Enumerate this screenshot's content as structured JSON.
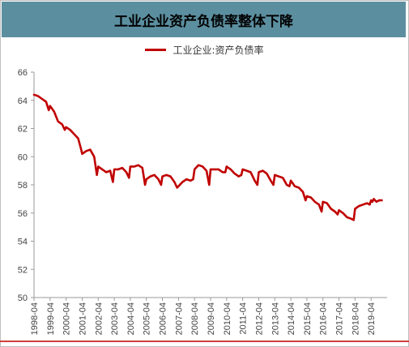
{
  "title": "工业企业资产负债率整体下降",
  "colors": {
    "title_bg": "#5b8fa0",
    "series": "#c00000",
    "axis": "#999999"
  },
  "chart_data": {
    "type": "line",
    "title": "工业企业资产负债率整体下降",
    "legend_position": "top-center",
    "grid": false,
    "ylim": [
      50,
      66
    ],
    "yticks": [
      50,
      52,
      54,
      56,
      58,
      60,
      62,
      64,
      66
    ],
    "xticks": [
      "1998-04",
      "1999-04",
      "2000-04",
      "2001-04",
      "2002-04",
      "2003-04",
      "2004-04",
      "2005-04",
      "2006-04",
      "2007-04",
      "2008-04",
      "2009-04",
      "2010-04",
      "2011-04",
      "2012-04",
      "2013-04",
      "2014-04",
      "2015-04",
      "2016-04",
      "2017-04",
      "2018-04",
      "2019-04"
    ],
    "series": [
      {
        "name": "工业企业:资产负债率",
        "points": [
          [
            "1998-04",
            64.4
          ],
          [
            "1998-07",
            64.3
          ],
          [
            "1998-10",
            64.1
          ],
          [
            "1999-01",
            63.9
          ],
          [
            "1999-03",
            63.3
          ],
          [
            "1999-04",
            63.6
          ],
          [
            "1999-07",
            63.2
          ],
          [
            "1999-10",
            62.5
          ],
          [
            "2000-01",
            62.3
          ],
          [
            "2000-03",
            61.9
          ],
          [
            "2000-04",
            62.1
          ],
          [
            "2000-07",
            61.9
          ],
          [
            "2000-10",
            61.6
          ],
          [
            "2001-01",
            61.3
          ],
          [
            "2001-03",
            60.6
          ],
          [
            "2001-04",
            60.2
          ],
          [
            "2001-07",
            60.4
          ],
          [
            "2001-10",
            60.5
          ],
          [
            "2002-01",
            60.0
          ],
          [
            "2002-03",
            58.7
          ],
          [
            "2002-04",
            59.3
          ],
          [
            "2002-07",
            59.1
          ],
          [
            "2002-10",
            58.9
          ],
          [
            "2003-01",
            59.0
          ],
          [
            "2003-03",
            58.2
          ],
          [
            "2003-04",
            59.1
          ],
          [
            "2003-07",
            59.1
          ],
          [
            "2003-10",
            59.2
          ],
          [
            "2004-01",
            58.9
          ],
          [
            "2004-03",
            58.5
          ],
          [
            "2004-04",
            59.3
          ],
          [
            "2004-07",
            59.3
          ],
          [
            "2004-10",
            59.4
          ],
          [
            "2005-01",
            59.2
          ],
          [
            "2005-03",
            58.0
          ],
          [
            "2005-04",
            58.4
          ],
          [
            "2005-07",
            58.6
          ],
          [
            "2005-10",
            58.7
          ],
          [
            "2006-01",
            58.4
          ],
          [
            "2006-03",
            58.0
          ],
          [
            "2006-04",
            58.6
          ],
          [
            "2006-07",
            58.7
          ],
          [
            "2006-10",
            58.6
          ],
          [
            "2007-01",
            58.2
          ],
          [
            "2007-03",
            57.8
          ],
          [
            "2007-04",
            57.9
          ],
          [
            "2007-07",
            58.2
          ],
          [
            "2007-10",
            58.4
          ],
          [
            "2008-01",
            58.3
          ],
          [
            "2008-03",
            58.4
          ],
          [
            "2008-04",
            59.1
          ],
          [
            "2008-07",
            59.4
          ],
          [
            "2008-10",
            59.3
          ],
          [
            "2009-01",
            59.0
          ],
          [
            "2009-03",
            58.0
          ],
          [
            "2009-04",
            59.1
          ],
          [
            "2009-07",
            59.1
          ],
          [
            "2009-10",
            59.1
          ],
          [
            "2010-01",
            58.9
          ],
          [
            "2010-03",
            58.9
          ],
          [
            "2010-04",
            59.3
          ],
          [
            "2010-07",
            59.1
          ],
          [
            "2010-10",
            58.8
          ],
          [
            "2011-01",
            58.6
          ],
          [
            "2011-03",
            58.7
          ],
          [
            "2011-04",
            59.1
          ],
          [
            "2011-07",
            59.0
          ],
          [
            "2011-10",
            58.9
          ],
          [
            "2012-01",
            58.3
          ],
          [
            "2012-03",
            58.0
          ],
          [
            "2012-04",
            58.9
          ],
          [
            "2012-07",
            59.0
          ],
          [
            "2012-10",
            58.8
          ],
          [
            "2013-01",
            58.3
          ],
          [
            "2013-03",
            58.0
          ],
          [
            "2013-04",
            58.7
          ],
          [
            "2013-07",
            58.6
          ],
          [
            "2013-10",
            58.5
          ],
          [
            "2014-01",
            58.0
          ],
          [
            "2014-03",
            57.9
          ],
          [
            "2014-04",
            58.3
          ],
          [
            "2014-07",
            57.9
          ],
          [
            "2014-10",
            57.8
          ],
          [
            "2015-01",
            57.5
          ],
          [
            "2015-03",
            56.9
          ],
          [
            "2015-04",
            57.2
          ],
          [
            "2015-07",
            57.1
          ],
          [
            "2015-10",
            56.8
          ],
          [
            "2016-01",
            56.6
          ],
          [
            "2016-03",
            56.1
          ],
          [
            "2016-04",
            56.8
          ],
          [
            "2016-07",
            56.7
          ],
          [
            "2016-10",
            56.3
          ],
          [
            "2017-01",
            56.1
          ],
          [
            "2017-03",
            55.9
          ],
          [
            "2017-04",
            56.2
          ],
          [
            "2017-07",
            56.0
          ],
          [
            "2017-10",
            55.7
          ],
          [
            "2018-01",
            55.6
          ],
          [
            "2018-03",
            55.5
          ],
          [
            "2018-04",
            56.3
          ],
          [
            "2018-07",
            56.5
          ],
          [
            "2018-10",
            56.6
          ],
          [
            "2019-01",
            56.7
          ],
          [
            "2019-03",
            56.6
          ],
          [
            "2019-04",
            56.9
          ],
          [
            "2019-05",
            56.8
          ],
          [
            "2019-06",
            57.0
          ],
          [
            "2019-08",
            56.8
          ],
          [
            "2019-10",
            56.9
          ],
          [
            "2019-12",
            56.9
          ]
        ]
      }
    ]
  }
}
